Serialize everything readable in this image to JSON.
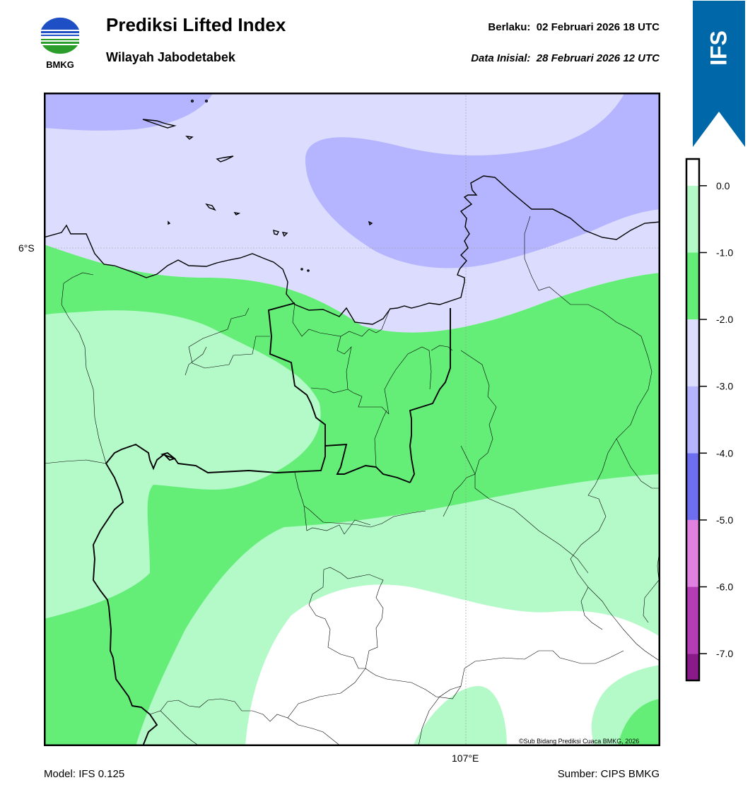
{
  "header": {
    "title": "Prediksi Lifted Index",
    "subtitle": "Wilayah Jabodetabek",
    "valid_text": "Berlaku:  02 Februari 2026 18 UTC",
    "init_text": "Data Inisial:  28 Februari 2026 12 UTC"
  },
  "logo": {
    "text": "BMKG"
  },
  "ribbon": {
    "text": "IFS",
    "color": "#0068a8"
  },
  "map": {
    "lat_label": "6°S",
    "lon_label": "107°E",
    "credit": "©Sub Bidang Prediksi Cuaca BMKG, 2026"
  },
  "footer": {
    "model": "Model: IFS 0.125",
    "source": "Sumber: CIPS BMKG"
  },
  "colorbar": {
    "bins": [
      {
        "range": [
          -7.4,
          -7.0
        ],
        "color": "#8a1a8a"
      },
      {
        "range": [
          -7.0,
          -6.0
        ],
        "color": "#b43cb4"
      },
      {
        "range": [
          -6.0,
          -5.0
        ],
        "color": "#e080e0"
      },
      {
        "range": [
          -5.0,
          -4.0
        ],
        "color": "#6e6ef0"
      },
      {
        "range": [
          -4.0,
          -3.0
        ],
        "color": "#b4b4ff"
      },
      {
        "range": [
          -3.0,
          -2.0
        ],
        "color": "#dcdcff"
      },
      {
        "range": [
          -2.0,
          -1.0
        ],
        "color": "#64ee78"
      },
      {
        "range": [
          -1.0,
          0.0
        ],
        "color": "#b4fac8"
      },
      {
        "range": [
          0.0,
          0.4
        ],
        "color": "#ffffff"
      }
    ],
    "ticks": [
      "0.0",
      "-1.0",
      "-2.0",
      "-3.0",
      "-4.0",
      "-5.0",
      "-6.0",
      "-7.0"
    ]
  },
  "colors": {
    "li_white": "#ffffff",
    "li_light_green": "#b4fac8",
    "li_green": "#64ee78",
    "li_light_lavender": "#dcdcff",
    "li_lavender": "#b4b4ff"
  }
}
